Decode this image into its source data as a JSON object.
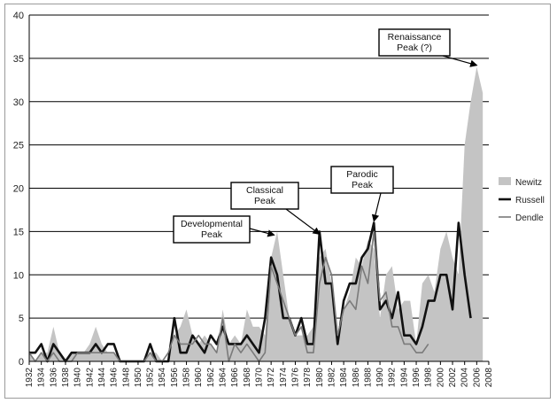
{
  "chart_data": {
    "type": "area",
    "title": "",
    "xlabel": "",
    "ylabel": "",
    "ylim": [
      0,
      40
    ],
    "yticks": [
      0,
      5,
      10,
      15,
      20,
      25,
      30,
      35,
      40
    ],
    "xlim": [
      1932,
      2008
    ],
    "xticks": [
      1932,
      1934,
      1936,
      1938,
      1940,
      1942,
      1944,
      1946,
      1948,
      1950,
      1952,
      1954,
      1956,
      1958,
      1960,
      1962,
      1964,
      1966,
      1968,
      1970,
      1972,
      1974,
      1976,
      1978,
      1980,
      1982,
      1984,
      1986,
      1988,
      1990,
      1992,
      1994,
      1996,
      1998,
      2000,
      2002,
      2004,
      2006,
      2008
    ],
    "grid": "horizontal",
    "legend_position": "right",
    "series": [
      {
        "name": "Newitz",
        "style": "area",
        "color": "#c4c4c4",
        "x": [
          1932,
          1933,
          1934,
          1935,
          1936,
          1937,
          1938,
          1939,
          1940,
          1941,
          1942,
          1943,
          1944,
          1945,
          1946,
          1947,
          1948,
          1949,
          1950,
          1951,
          1952,
          1953,
          1954,
          1955,
          1956,
          1957,
          1958,
          1959,
          1960,
          1961,
          1962,
          1963,
          1964,
          1965,
          1966,
          1967,
          1968,
          1969,
          1970,
          1971,
          1972,
          1973,
          1974,
          1975,
          1976,
          1977,
          1978,
          1979,
          1980,
          1981,
          1982,
          1983,
          1984,
          1985,
          1986,
          1987,
          1988,
          1989,
          1990,
          1991,
          1992,
          1993,
          1994,
          1995,
          1996,
          1997,
          1998,
          1999,
          2000,
          2001,
          2002,
          2003,
          2004,
          2005,
          2006,
          2007
        ],
        "y": [
          1,
          0,
          1,
          1,
          4,
          1,
          0,
          1,
          1,
          1,
          2,
          4,
          2,
          1,
          1,
          0,
          0,
          0,
          0,
          0,
          1,
          1,
          0,
          0,
          3,
          4,
          6,
          3,
          2,
          3,
          2,
          1,
          6,
          2,
          3,
          2,
          6,
          4,
          4,
          3,
          12,
          15,
          10,
          5,
          3,
          3,
          3,
          4,
          12,
          13,
          9,
          3,
          6,
          8,
          12,
          11,
          14,
          13,
          5,
          10,
          11,
          6,
          7,
          7,
          2,
          9,
          10,
          8,
          13,
          15,
          12,
          10,
          25,
          30,
          34,
          31
        ]
      },
      {
        "name": "Russell",
        "style": "line",
        "color": "#111111",
        "x": [
          1932,
          1933,
          1934,
          1935,
          1936,
          1937,
          1938,
          1939,
          1940,
          1941,
          1942,
          1943,
          1944,
          1945,
          1946,
          1947,
          1948,
          1949,
          1950,
          1951,
          1952,
          1953,
          1954,
          1955,
          1956,
          1957,
          1958,
          1959,
          1960,
          1961,
          1962,
          1963,
          1964,
          1965,
          1966,
          1967,
          1968,
          1969,
          1970,
          1971,
          1972,
          1973,
          1974,
          1975,
          1976,
          1977,
          1978,
          1979,
          1980,
          1981,
          1982,
          1983,
          1984,
          1985,
          1986,
          1987,
          1988,
          1989,
          1990,
          1991,
          1992,
          1993,
          1994,
          1995,
          1996,
          1997,
          1998,
          1999,
          2000,
          2001,
          2002,
          2003,
          2004,
          2005
        ],
        "y": [
          1,
          1,
          2,
          0,
          2,
          1,
          0,
          1,
          1,
          1,
          1,
          2,
          1,
          2,
          2,
          0,
          0,
          0,
          0,
          0,
          2,
          0,
          0,
          0,
          5,
          1,
          1,
          3,
          2,
          1,
          3,
          2,
          4,
          2,
          2,
          2,
          3,
          2,
          1,
          5,
          12,
          10,
          5,
          5,
          3,
          5,
          2,
          2,
          15,
          9,
          9,
          2,
          7,
          9,
          9,
          12,
          13,
          16,
          6,
          7,
          5,
          8,
          3,
          3,
          2,
          4,
          7,
          7,
          10,
          10,
          6,
          16,
          10,
          5
        ]
      },
      {
        "name": "Dendle",
        "style": "line",
        "color": "#7a7a7a",
        "x": [
          1932,
          1933,
          1934,
          1935,
          1936,
          1937,
          1938,
          1939,
          1940,
          1941,
          1942,
          1943,
          1944,
          1945,
          1946,
          1947,
          1948,
          1949,
          1950,
          1951,
          1952,
          1953,
          1954,
          1955,
          1956,
          1957,
          1958,
          1959,
          1960,
          1961,
          1962,
          1963,
          1964,
          1965,
          1966,
          1967,
          1968,
          1969,
          1970,
          1971,
          1972,
          1973,
          1974,
          1975,
          1976,
          1977,
          1978,
          1979,
          1980,
          1981,
          1982,
          1983,
          1984,
          1985,
          1986,
          1987,
          1988,
          1989,
          1990,
          1991,
          1992,
          1993,
          1994,
          1995,
          1996,
          1997,
          1998
        ],
        "y": [
          1,
          0,
          1,
          0,
          1,
          0,
          0,
          0,
          1,
          1,
          1,
          1,
          1,
          1,
          1,
          0,
          0,
          0,
          0,
          0,
          1,
          0,
          0,
          1,
          3,
          2,
          2,
          2,
          3,
          2,
          2,
          1,
          5,
          0,
          2,
          1,
          2,
          1,
          0,
          1,
          11,
          9,
          7,
          5,
          3,
          4,
          1,
          1,
          9,
          12,
          10,
          3,
          6,
          7,
          6,
          11,
          9,
          15,
          7,
          8,
          4,
          4,
          2,
          2,
          1,
          1,
          2
        ]
      }
    ],
    "annotations": [
      {
        "lines": [
          "Developmental",
          "Peak"
        ],
        "target": [
          1972.5,
          14.6
        ]
      },
      {
        "lines": [
          "Classical",
          "Peak"
        ],
        "target": [
          1980,
          14.7
        ]
      },
      {
        "lines": [
          "Parodic",
          "Peak"
        ],
        "target": [
          1989,
          16.2
        ]
      },
      {
        "lines": [
          "Renaissance",
          "Peak (?)"
        ],
        "target": [
          2006,
          34.2
        ]
      }
    ]
  }
}
